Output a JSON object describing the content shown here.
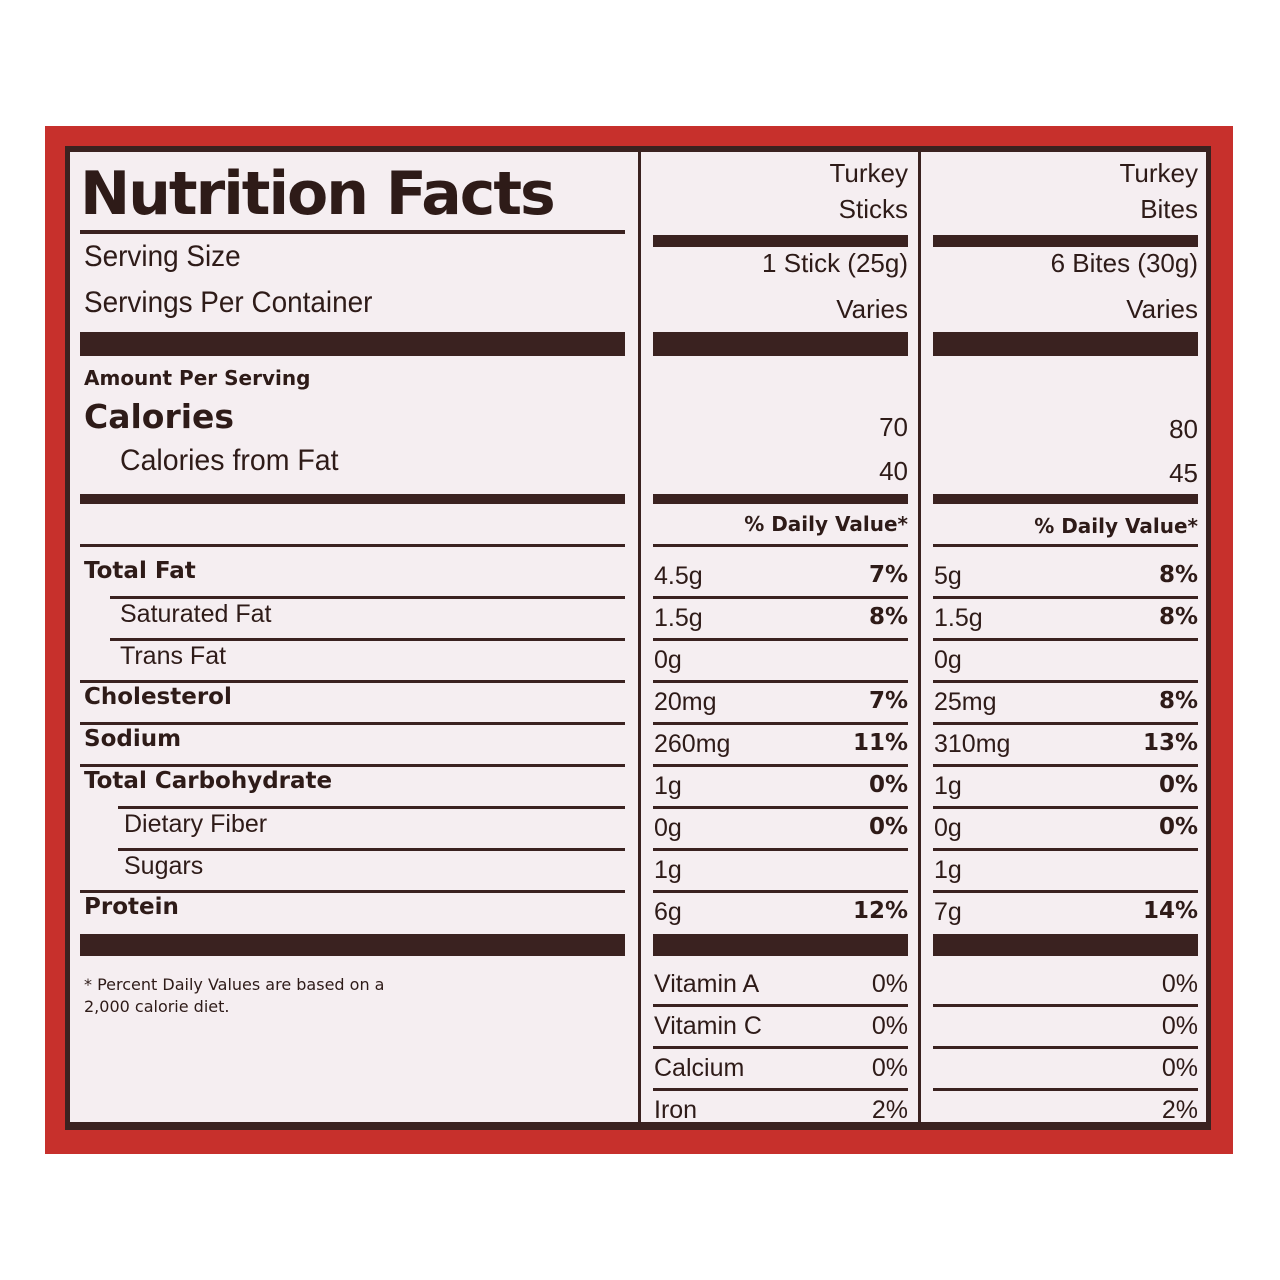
{
  "label": {
    "title": "Nutrition Facts",
    "columns": [
      {
        "name_line1": "Turkey",
        "name_line2": "Sticks",
        "serving_size": "1 Stick (25g)",
        "servings_per_container": "Varies",
        "calories": "70",
        "calories_from_fat": "40"
      },
      {
        "name_line1": "Turkey",
        "name_line2": "Bites",
        "serving_size": "6 Bites (30g)",
        "servings_per_container": "Varies",
        "calories": "80",
        "calories_from_fat": "45"
      }
    ],
    "serving_size_label": "Serving Size",
    "servings_per_container_label": "Servings Per Container",
    "amount_per_serving": "Amount Per Serving",
    "calories_label": "Calories",
    "calories_from_fat_label": "Calories from Fat",
    "daily_value_header": "% Daily Value*",
    "nutrients": [
      {
        "name": "Total Fat",
        "sticks_amount": "4.5g",
        "sticks_dv": "7%",
        "bites_amount": "5g",
        "bites_dv": "8%"
      },
      {
        "name": "Saturated Fat",
        "sticks_amount": "1.5g",
        "sticks_dv": "8%",
        "bites_amount": "1.5g",
        "bites_dv": "8%"
      },
      {
        "name": "Trans Fat",
        "sticks_amount": "0g",
        "sticks_dv": "",
        "bites_amount": "0g",
        "bites_dv": ""
      },
      {
        "name": "Cholesterol",
        "sticks_amount": "20mg",
        "sticks_dv": "7%",
        "bites_amount": "25mg",
        "bites_dv": "8%"
      },
      {
        "name": "Sodium",
        "sticks_amount": "260mg",
        "sticks_dv": "11%",
        "bites_amount": "310mg",
        "bites_dv": "13%"
      },
      {
        "name": "Total Carbohydrate",
        "sticks_amount": "1g",
        "sticks_dv": "0%",
        "bites_amount": "1g",
        "bites_dv": "0%"
      },
      {
        "name": "Dietary Fiber",
        "sticks_amount": "0g",
        "sticks_dv": "0%",
        "bites_amount": "0g",
        "bites_dv": "0%"
      },
      {
        "name": "Sugars",
        "sticks_amount": "1g",
        "sticks_dv": "",
        "bites_amount": "1g",
        "bites_dv": ""
      },
      {
        "name": "Protein",
        "sticks_amount": "6g",
        "sticks_dv": "12%",
        "bites_amount": "7g",
        "bites_dv": "14%"
      }
    ],
    "vitamins": [
      {
        "name": "Vitamin A",
        "sticks": "0%",
        "bites": "0%"
      },
      {
        "name": "Vitamin C",
        "sticks": "0%",
        "bites": "0%"
      },
      {
        "name": "Calcium",
        "sticks": "0%",
        "bites": "0%"
      },
      {
        "name": "Iron",
        "sticks": "2%",
        "bites": "2%"
      }
    ],
    "footnote": "* Percent Daily Values are based on a 2,000 calorie diet."
  }
}
